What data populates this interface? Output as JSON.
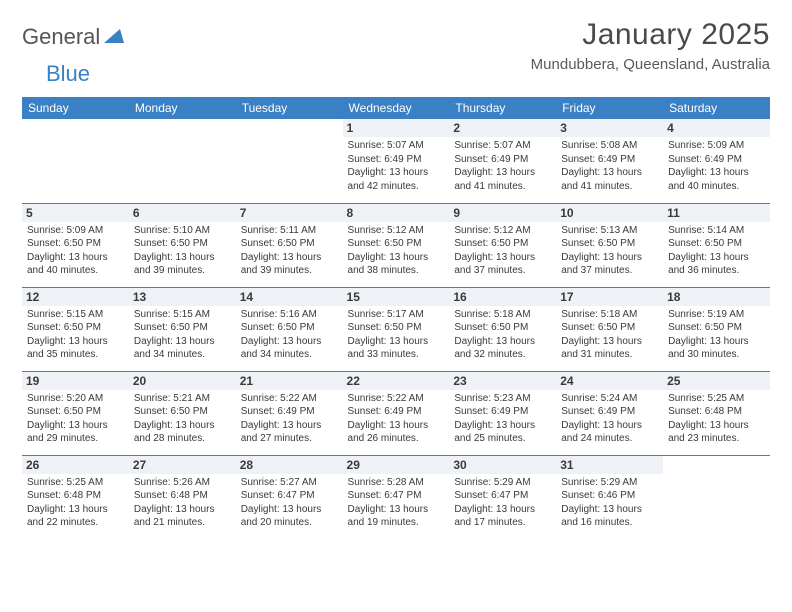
{
  "logo": {
    "general": "General",
    "blue": "Blue"
  },
  "title": "January 2025",
  "location": "Mundubbera, Queensland, Australia",
  "colors": {
    "header_bg": "#3a80c5",
    "header_fg": "#ffffff",
    "daynum_bg": "#eef2f6",
    "rule": "#3a80c5",
    "logo_blue": "#3a80c5",
    "logo_gray": "#555555"
  },
  "day_headers": [
    "Sunday",
    "Monday",
    "Tuesday",
    "Wednesday",
    "Thursday",
    "Friday",
    "Saturday"
  ],
  "weeks": [
    [
      {
        "day": "",
        "sunrise": "",
        "sunset": "",
        "daylight": ""
      },
      {
        "day": "",
        "sunrise": "",
        "sunset": "",
        "daylight": ""
      },
      {
        "day": "",
        "sunrise": "",
        "sunset": "",
        "daylight": ""
      },
      {
        "day": "1",
        "sunrise": "Sunrise: 5:07 AM",
        "sunset": "Sunset: 6:49 PM",
        "daylight": "Daylight: 13 hours and 42 minutes."
      },
      {
        "day": "2",
        "sunrise": "Sunrise: 5:07 AM",
        "sunset": "Sunset: 6:49 PM",
        "daylight": "Daylight: 13 hours and 41 minutes."
      },
      {
        "day": "3",
        "sunrise": "Sunrise: 5:08 AM",
        "sunset": "Sunset: 6:49 PM",
        "daylight": "Daylight: 13 hours and 41 minutes."
      },
      {
        "day": "4",
        "sunrise": "Sunrise: 5:09 AM",
        "sunset": "Sunset: 6:49 PM",
        "daylight": "Daylight: 13 hours and 40 minutes."
      }
    ],
    [
      {
        "day": "5",
        "sunrise": "Sunrise: 5:09 AM",
        "sunset": "Sunset: 6:50 PM",
        "daylight": "Daylight: 13 hours and 40 minutes."
      },
      {
        "day": "6",
        "sunrise": "Sunrise: 5:10 AM",
        "sunset": "Sunset: 6:50 PM",
        "daylight": "Daylight: 13 hours and 39 minutes."
      },
      {
        "day": "7",
        "sunrise": "Sunrise: 5:11 AM",
        "sunset": "Sunset: 6:50 PM",
        "daylight": "Daylight: 13 hours and 39 minutes."
      },
      {
        "day": "8",
        "sunrise": "Sunrise: 5:12 AM",
        "sunset": "Sunset: 6:50 PM",
        "daylight": "Daylight: 13 hours and 38 minutes."
      },
      {
        "day": "9",
        "sunrise": "Sunrise: 5:12 AM",
        "sunset": "Sunset: 6:50 PM",
        "daylight": "Daylight: 13 hours and 37 minutes."
      },
      {
        "day": "10",
        "sunrise": "Sunrise: 5:13 AM",
        "sunset": "Sunset: 6:50 PM",
        "daylight": "Daylight: 13 hours and 37 minutes."
      },
      {
        "day": "11",
        "sunrise": "Sunrise: 5:14 AM",
        "sunset": "Sunset: 6:50 PM",
        "daylight": "Daylight: 13 hours and 36 minutes."
      }
    ],
    [
      {
        "day": "12",
        "sunrise": "Sunrise: 5:15 AM",
        "sunset": "Sunset: 6:50 PM",
        "daylight": "Daylight: 13 hours and 35 minutes."
      },
      {
        "day": "13",
        "sunrise": "Sunrise: 5:15 AM",
        "sunset": "Sunset: 6:50 PM",
        "daylight": "Daylight: 13 hours and 34 minutes."
      },
      {
        "day": "14",
        "sunrise": "Sunrise: 5:16 AM",
        "sunset": "Sunset: 6:50 PM",
        "daylight": "Daylight: 13 hours and 34 minutes."
      },
      {
        "day": "15",
        "sunrise": "Sunrise: 5:17 AM",
        "sunset": "Sunset: 6:50 PM",
        "daylight": "Daylight: 13 hours and 33 minutes."
      },
      {
        "day": "16",
        "sunrise": "Sunrise: 5:18 AM",
        "sunset": "Sunset: 6:50 PM",
        "daylight": "Daylight: 13 hours and 32 minutes."
      },
      {
        "day": "17",
        "sunrise": "Sunrise: 5:18 AM",
        "sunset": "Sunset: 6:50 PM",
        "daylight": "Daylight: 13 hours and 31 minutes."
      },
      {
        "day": "18",
        "sunrise": "Sunrise: 5:19 AM",
        "sunset": "Sunset: 6:50 PM",
        "daylight": "Daylight: 13 hours and 30 minutes."
      }
    ],
    [
      {
        "day": "19",
        "sunrise": "Sunrise: 5:20 AM",
        "sunset": "Sunset: 6:50 PM",
        "daylight": "Daylight: 13 hours and 29 minutes."
      },
      {
        "day": "20",
        "sunrise": "Sunrise: 5:21 AM",
        "sunset": "Sunset: 6:50 PM",
        "daylight": "Daylight: 13 hours and 28 minutes."
      },
      {
        "day": "21",
        "sunrise": "Sunrise: 5:22 AM",
        "sunset": "Sunset: 6:49 PM",
        "daylight": "Daylight: 13 hours and 27 minutes."
      },
      {
        "day": "22",
        "sunrise": "Sunrise: 5:22 AM",
        "sunset": "Sunset: 6:49 PM",
        "daylight": "Daylight: 13 hours and 26 minutes."
      },
      {
        "day": "23",
        "sunrise": "Sunrise: 5:23 AM",
        "sunset": "Sunset: 6:49 PM",
        "daylight": "Daylight: 13 hours and 25 minutes."
      },
      {
        "day": "24",
        "sunrise": "Sunrise: 5:24 AM",
        "sunset": "Sunset: 6:49 PM",
        "daylight": "Daylight: 13 hours and 24 minutes."
      },
      {
        "day": "25",
        "sunrise": "Sunrise: 5:25 AM",
        "sunset": "Sunset: 6:48 PM",
        "daylight": "Daylight: 13 hours and 23 minutes."
      }
    ],
    [
      {
        "day": "26",
        "sunrise": "Sunrise: 5:25 AM",
        "sunset": "Sunset: 6:48 PM",
        "daylight": "Daylight: 13 hours and 22 minutes."
      },
      {
        "day": "27",
        "sunrise": "Sunrise: 5:26 AM",
        "sunset": "Sunset: 6:48 PM",
        "daylight": "Daylight: 13 hours and 21 minutes."
      },
      {
        "day": "28",
        "sunrise": "Sunrise: 5:27 AM",
        "sunset": "Sunset: 6:47 PM",
        "daylight": "Daylight: 13 hours and 20 minutes."
      },
      {
        "day": "29",
        "sunrise": "Sunrise: 5:28 AM",
        "sunset": "Sunset: 6:47 PM",
        "daylight": "Daylight: 13 hours and 19 minutes."
      },
      {
        "day": "30",
        "sunrise": "Sunrise: 5:29 AM",
        "sunset": "Sunset: 6:47 PM",
        "daylight": "Daylight: 13 hours and 17 minutes."
      },
      {
        "day": "31",
        "sunrise": "Sunrise: 5:29 AM",
        "sunset": "Sunset: 6:46 PM",
        "daylight": "Daylight: 13 hours and 16 minutes."
      },
      {
        "day": "",
        "sunrise": "",
        "sunset": "",
        "daylight": ""
      }
    ]
  ]
}
